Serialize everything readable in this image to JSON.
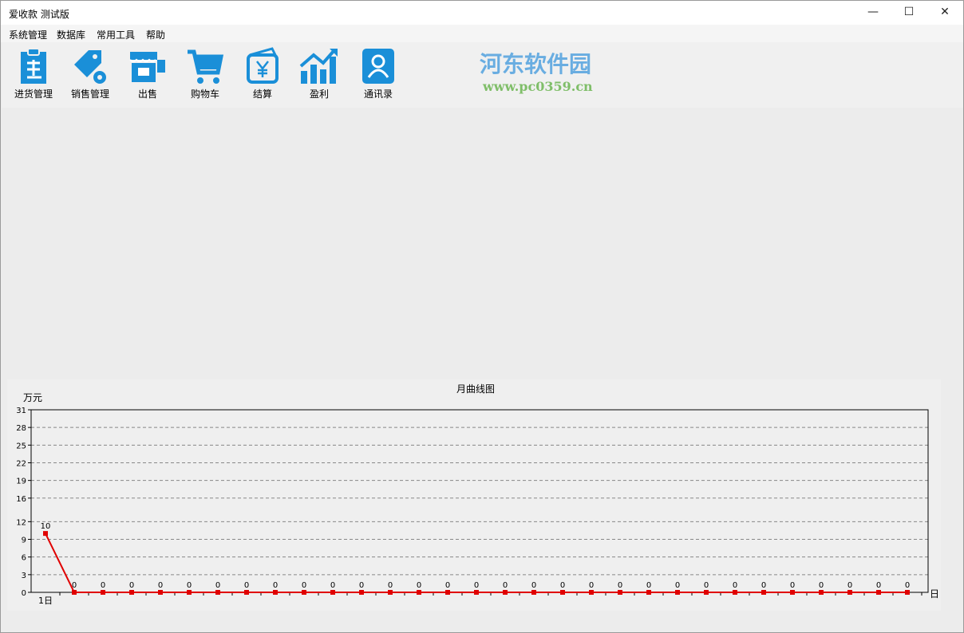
{
  "window": {
    "title": "爱收款 测试版",
    "minimize": "—",
    "maximize": "☐",
    "close": "✕"
  },
  "menu": [
    "系统管理",
    "数据库",
    "常用工具",
    "帮助"
  ],
  "toolbar": [
    {
      "label": "进货管理",
      "icon": "clipboard-purchase-icon"
    },
    {
      "label": "销售管理",
      "icon": "tag-gear-icon"
    },
    {
      "label": "出售",
      "icon": "storefront-icon"
    },
    {
      "label": "购物车",
      "icon": "shopping-cart-icon"
    },
    {
      "label": "结算",
      "icon": "wallet-yen-icon"
    },
    {
      "label": "盈利",
      "icon": "bar-chart-up-icon"
    },
    {
      "label": "通讯录",
      "icon": "contact-book-icon"
    }
  ],
  "accent": "#1a8fd8",
  "watermark": {
    "name": "河东软件园",
    "url": "www.pc0359.cn"
  },
  "chart_data": {
    "type": "line",
    "title": "月曲线图",
    "ylabel": "万元",
    "xlabel": "日",
    "first_tick_label": "1日",
    "yticks": [
      0,
      3,
      6,
      9,
      12,
      16,
      19,
      22,
      25,
      28,
      31
    ],
    "ylim": [
      0,
      31
    ],
    "grid": "horizontal dashed",
    "line_color": "#e00000",
    "x": [
      1,
      2,
      3,
      4,
      5,
      6,
      7,
      8,
      9,
      10,
      11,
      12,
      13,
      14,
      15,
      16,
      17,
      18,
      19,
      20,
      21,
      22,
      23,
      24,
      25,
      26,
      27,
      28,
      29,
      30,
      31
    ],
    "values": [
      10,
      0,
      0,
      0,
      0,
      0,
      0,
      0,
      0,
      0,
      0,
      0,
      0,
      0,
      0,
      0,
      0,
      0,
      0,
      0,
      0,
      0,
      0,
      0,
      0,
      0,
      0,
      0,
      0,
      0,
      0
    ]
  }
}
